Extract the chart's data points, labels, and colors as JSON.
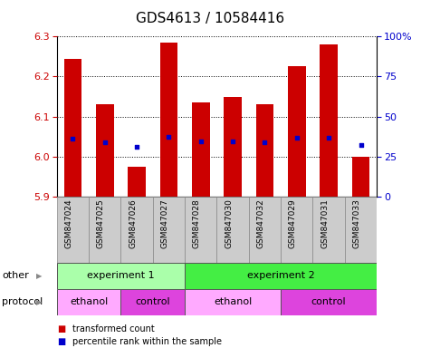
{
  "title": "GDS4613 / 10584416",
  "samples": [
    "GSM847024",
    "GSM847025",
    "GSM847026",
    "GSM847027",
    "GSM847028",
    "GSM847030",
    "GSM847032",
    "GSM847029",
    "GSM847031",
    "GSM847033"
  ],
  "bar_values": [
    6.245,
    6.13,
    5.975,
    6.285,
    6.135,
    6.148,
    6.13,
    6.225,
    6.28,
    6.0
  ],
  "bar_bottom": 5.9,
  "percentile_values": [
    6.045,
    6.035,
    6.025,
    6.05,
    6.037,
    6.038,
    6.035,
    6.048,
    6.048,
    6.03
  ],
  "ylim_left": [
    5.9,
    6.3
  ],
  "ylim_right": [
    0,
    100
  ],
  "yticks_left": [
    5.9,
    6.0,
    6.1,
    6.2,
    6.3
  ],
  "yticks_right": [
    0,
    25,
    50,
    75,
    100
  ],
  "bar_color": "#cc0000",
  "percentile_color": "#0000cc",
  "title_fontsize": 11,
  "other_row": [
    {
      "label": "experiment 1",
      "start": 0,
      "end": 4,
      "color": "#aaffaa"
    },
    {
      "label": "experiment 2",
      "start": 4,
      "end": 10,
      "color": "#44ee44"
    }
  ],
  "protocol_row": [
    {
      "label": "ethanol",
      "start": 0,
      "end": 2,
      "color": "#ffaaff"
    },
    {
      "label": "control",
      "start": 2,
      "end": 4,
      "color": "#dd44dd"
    },
    {
      "label": "ethanol",
      "start": 4,
      "end": 7,
      "color": "#ffaaff"
    },
    {
      "label": "control",
      "start": 7,
      "end": 10,
      "color": "#dd44dd"
    }
  ],
  "legend_items": [
    {
      "label": "transformed count",
      "color": "#cc0000"
    },
    {
      "label": "percentile rank within the sample",
      "color": "#0000cc"
    }
  ],
  "tick_label_color_left": "#cc0000",
  "tick_label_color_right": "#0000cc",
  "label_cell_color": "#cccccc",
  "label_cell_edge": "#888888"
}
